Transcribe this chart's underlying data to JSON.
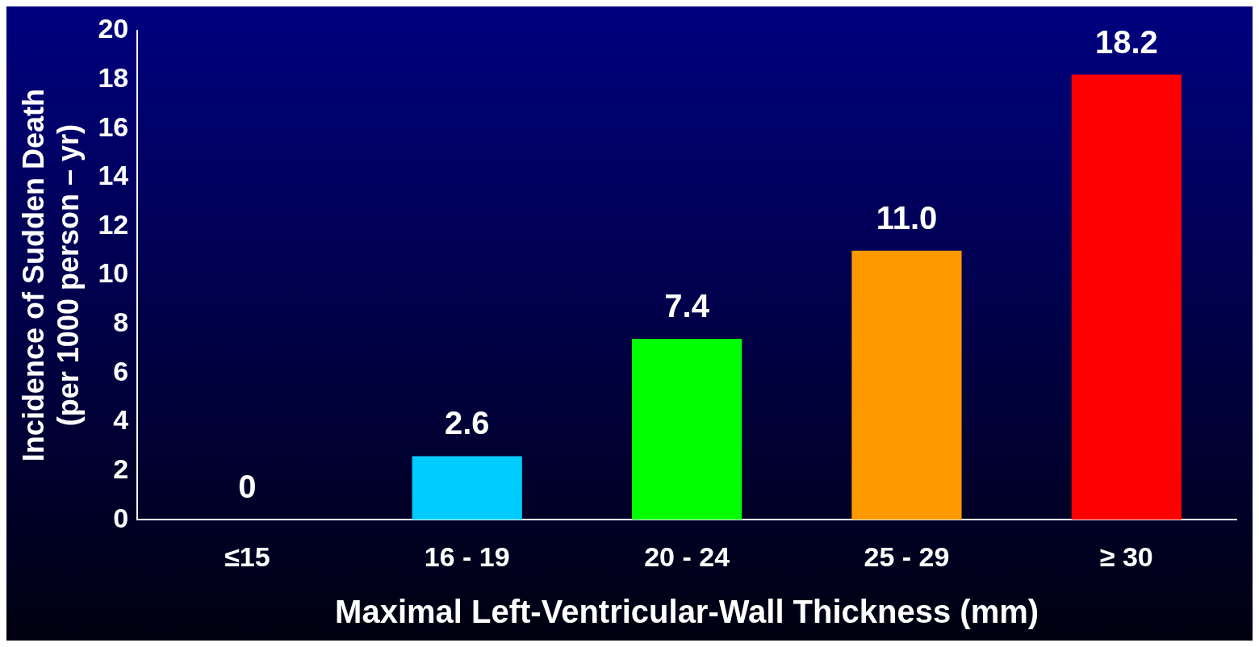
{
  "chart_data": {
    "type": "bar",
    "categories": [
      "≤15",
      "16 - 19",
      "20 - 24",
      "25 - 29",
      "≥ 30"
    ],
    "values": [
      0,
      2.6,
      7.4,
      11.0,
      18.2
    ],
    "colors": [
      "#d0d0d0",
      "#00ccff",
      "#00ff00",
      "#ff9900",
      "#ff0000"
    ],
    "value_labels": [
      "0",
      "2.6",
      "7.4",
      "11.0",
      "18.2"
    ],
    "ylim": [
      0,
      20
    ],
    "yticks": [
      0,
      2,
      4,
      6,
      8,
      10,
      12,
      14,
      16,
      18,
      20
    ],
    "xlabel": "Maximal Left-Ventricular-Wall Thickness (mm)",
    "ylabel": "Incidence of Sudden Death\n(per 1000 person – yr)",
    "grid": false,
    "legend": false
  }
}
